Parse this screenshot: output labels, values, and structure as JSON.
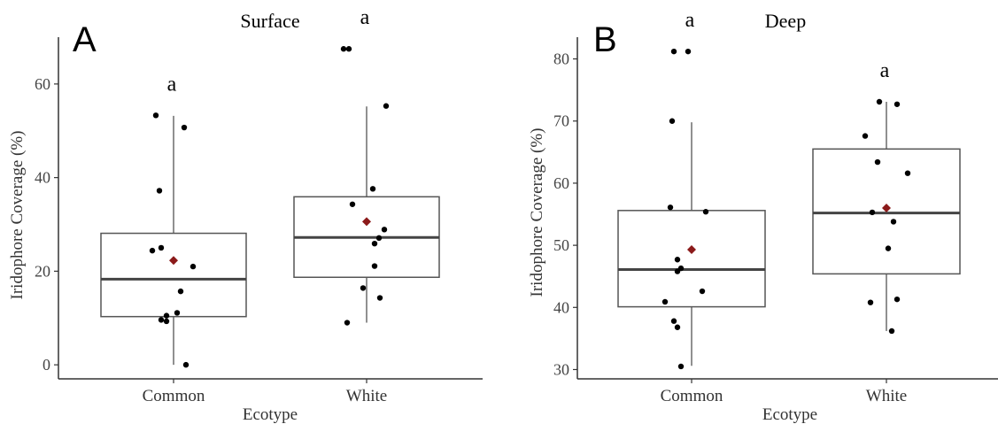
{
  "chart_data": [
    {
      "type": "box",
      "panel_label": "A",
      "title": "Surface",
      "xlabel": "Ecotype",
      "ylabel": "Iridophore Coverage (%)",
      "categories": [
        "Common",
        "White"
      ],
      "ylim": [
        -3,
        70
      ],
      "yticks": [
        0,
        20,
        40,
        60
      ],
      "grid": false,
      "boxes": [
        {
          "category": "Common",
          "q1": 10.3,
          "median": 18.3,
          "q3": 28.1,
          "whisker_low": 0,
          "whisker_high": 53.2,
          "mean": 22.3,
          "sig_letter": "a"
        },
        {
          "category": "White",
          "q1": 18.7,
          "median": 27.2,
          "q3": 35.9,
          "whisker_low": 9.0,
          "whisker_high": 55.2,
          "mean": 30.6,
          "sig_letter": "a"
        }
      ],
      "points": [
        {
          "category": "Common",
          "values": [
            53.3,
            50.7,
            37.2,
            25.0,
            24.4,
            21.0,
            15.7,
            11.1,
            10.5,
            9.6,
            9.3,
            0.0
          ]
        },
        {
          "category": "White",
          "values": [
            67.5,
            67.5,
            55.3,
            37.6,
            34.3,
            28.9,
            27.1,
            25.9,
            21.1,
            16.4,
            14.3,
            9.0
          ]
        }
      ],
      "colors": {
        "box": "#555555",
        "median": "#444444",
        "point": "#000000",
        "mean": "#8b1a1a"
      }
    },
    {
      "type": "box",
      "panel_label": "B",
      "title": "Deep",
      "xlabel": "Ecotype",
      "ylabel": "Iridophore Coverage (%)",
      "categories": [
        "Common",
        "White"
      ],
      "ylim": [
        28.5,
        83.5
      ],
      "yticks": [
        30,
        40,
        50,
        60,
        70,
        80
      ],
      "grid": false,
      "boxes": [
        {
          "category": "Common",
          "q1": 40.1,
          "median": 46.1,
          "q3": 55.6,
          "whisker_low": 30.6,
          "whisker_high": 69.8,
          "mean": 49.3,
          "sig_letter": "a"
        },
        {
          "category": "White",
          "q1": 45.4,
          "median": 55.2,
          "q3": 65.5,
          "whisker_low": 36.2,
          "whisker_high": 73.1,
          "mean": 56.0,
          "sig_letter": "a"
        }
      ],
      "points": [
        {
          "category": "Common",
          "values": [
            81.2,
            81.2,
            70.0,
            56.1,
            55.4,
            47.7,
            46.3,
            45.8,
            42.6,
            40.9,
            37.8,
            36.8,
            30.5
          ]
        },
        {
          "category": "White",
          "values": [
            73.1,
            72.7,
            67.6,
            63.4,
            61.6,
            55.3,
            53.8,
            49.5,
            41.3,
            40.8,
            36.2
          ]
        }
      ],
      "colors": {
        "box": "#555555",
        "median": "#444444",
        "point": "#000000",
        "mean": "#8b1a1a"
      }
    }
  ]
}
